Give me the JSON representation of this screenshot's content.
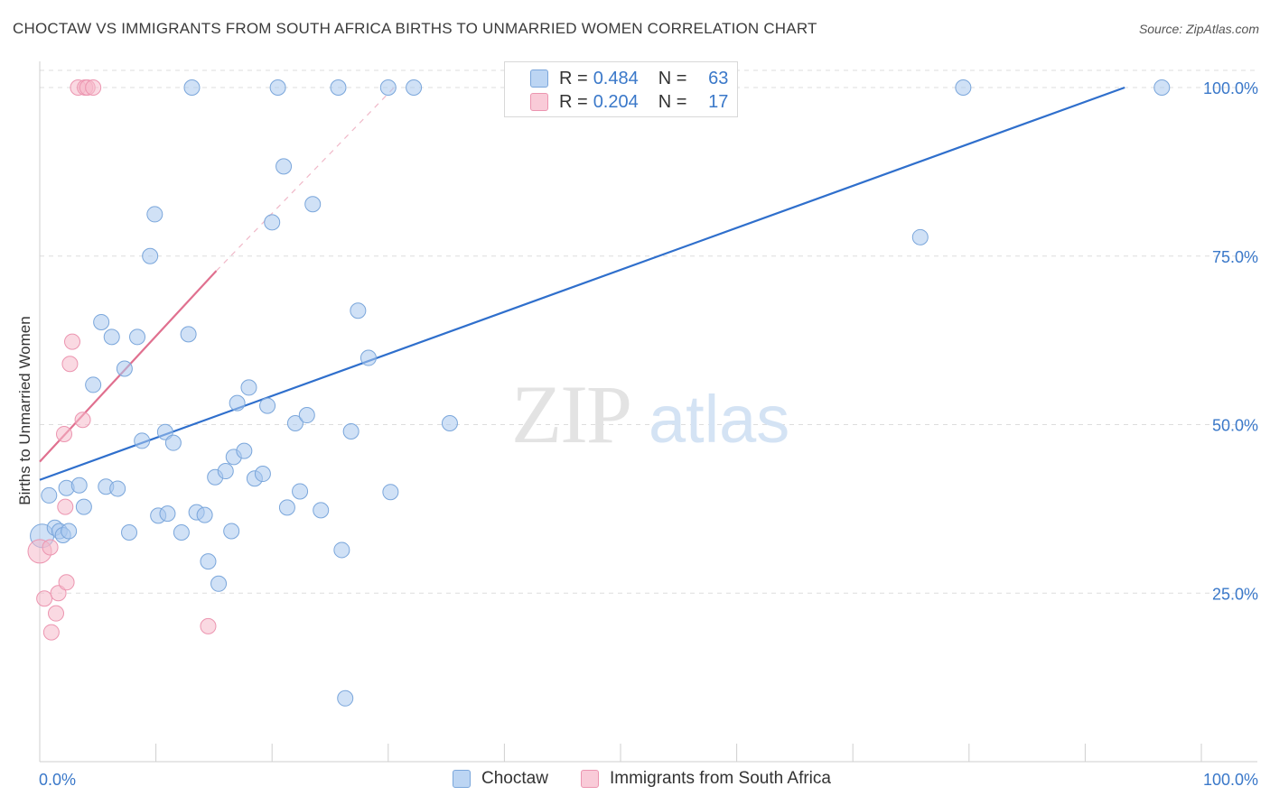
{
  "title": "CHOCTAW VS IMMIGRANTS FROM SOUTH AFRICA BIRTHS TO UNMARRIED WOMEN CORRELATION CHART",
  "source": "Source: ZipAtlas.com",
  "watermark": {
    "zip": "ZIP",
    "atlas": "atlas"
  },
  "legend_top": {
    "rows": [
      {
        "r_label": "R =",
        "r_value": "0.484",
        "n_label": "N =",
        "n_value": "63"
      },
      {
        "r_label": "R =",
        "r_value": "0.204",
        "n_label": "N =",
        "n_value": "17"
      }
    ]
  },
  "legend_bottom": {
    "items": [
      "Choctaw",
      "Immigrants from South Africa"
    ]
  },
  "colors": {
    "choctaw_fill": "#a9c8ef",
    "choctaw_stroke": "#7aa6db",
    "choctaw_line": "#2f6fcc",
    "sa_fill": "#f6b9cb",
    "sa_stroke": "#ec95b0",
    "sa_line": "#e0708f",
    "grid": "#dddddd",
    "tick_label": "#3a78c9"
  },
  "chart_data": {
    "type": "scatter",
    "title": "CHOCTAW VS IMMIGRANTS FROM SOUTH AFRICA BIRTHS TO UNMARRIED WOMEN CORRELATION CHART",
    "xlabel": "",
    "ylabel": "Births to Unmarried Women",
    "xlim": [
      0,
      100
    ],
    "ylim": [
      0,
      102.5
    ],
    "x_tick_labels": [
      "0.0%",
      "100.0%"
    ],
    "y_ticks": [
      25,
      50,
      75,
      100
    ],
    "y_tick_labels": [
      "25.0%",
      "50.0%",
      "75.0%",
      "100.0%"
    ],
    "grid": true,
    "series": [
      {
        "name": "Choctaw",
        "r": 0.484,
        "n": 63,
        "trend": {
          "x0": 0,
          "y0": 41.8,
          "x1": 93.4,
          "y1": 100
        },
        "points": [
          [
            0.2,
            33.5
          ],
          [
            0.8,
            39.5
          ],
          [
            1.3,
            34.7
          ],
          [
            1.7,
            34.2
          ],
          [
            2.0,
            33.6
          ],
          [
            2.3,
            40.6
          ],
          [
            2.5,
            34.2
          ],
          [
            3.4,
            41.0
          ],
          [
            3.8,
            37.8
          ],
          [
            4.6,
            55.9
          ],
          [
            5.3,
            65.2
          ],
          [
            5.7,
            40.8
          ],
          [
            6.2,
            63.0
          ],
          [
            6.7,
            40.5
          ],
          [
            7.3,
            58.3
          ],
          [
            7.7,
            34.0
          ],
          [
            8.4,
            63.0
          ],
          [
            8.8,
            47.6
          ],
          [
            9.5,
            75.0
          ],
          [
            9.9,
            81.2
          ],
          [
            10.2,
            36.5
          ],
          [
            10.8,
            48.9
          ],
          [
            11.0,
            36.8
          ],
          [
            11.5,
            47.3
          ],
          [
            12.2,
            34.0
          ],
          [
            12.8,
            63.4
          ],
          [
            13.1,
            100.0
          ],
          [
            13.5,
            37.0
          ],
          [
            14.2,
            36.6
          ],
          [
            14.5,
            29.7
          ],
          [
            15.1,
            42.2
          ],
          [
            15.4,
            26.4
          ],
          [
            16.0,
            43.1
          ],
          [
            16.5,
            34.2
          ],
          [
            16.7,
            45.2
          ],
          [
            17.0,
            53.2
          ],
          [
            17.6,
            46.1
          ],
          [
            18.0,
            55.5
          ],
          [
            18.5,
            42.0
          ],
          [
            19.2,
            42.7
          ],
          [
            19.6,
            52.8
          ],
          [
            20.0,
            80.0
          ],
          [
            20.5,
            100.0
          ],
          [
            21.0,
            88.3
          ],
          [
            21.3,
            37.7
          ],
          [
            22.0,
            50.2
          ],
          [
            22.4,
            40.1
          ],
          [
            23.0,
            51.4
          ],
          [
            23.5,
            82.7
          ],
          [
            24.2,
            37.3
          ],
          [
            25.7,
            100.0
          ],
          [
            26.0,
            31.4
          ],
          [
            26.3,
            9.4
          ],
          [
            26.8,
            49.0
          ],
          [
            27.4,
            66.9
          ],
          [
            28.3,
            59.9
          ],
          [
            30.0,
            100.0
          ],
          [
            30.2,
            40.0
          ],
          [
            32.2,
            100.0
          ],
          [
            35.3,
            50.2
          ],
          [
            75.8,
            77.8
          ],
          [
            79.5,
            100.0
          ],
          [
            96.6,
            100.0
          ]
        ]
      },
      {
        "name": "Immigrants from South Africa",
        "r": 0.204,
        "n": 17,
        "trend": {
          "x0": 0,
          "y0": 44.5,
          "x1": 15.2,
          "y1": 72.8,
          "dash_x1": 30.5,
          "dash_y1": 100
        },
        "points": [
          [
            0.0,
            31.2
          ],
          [
            0.4,
            24.2
          ],
          [
            0.9,
            31.8
          ],
          [
            1.0,
            19.2
          ],
          [
            1.4,
            22.0
          ],
          [
            1.6,
            25.0
          ],
          [
            2.1,
            48.6
          ],
          [
            2.2,
            37.8
          ],
          [
            2.3,
            26.6
          ],
          [
            2.6,
            59.0
          ],
          [
            2.8,
            62.3
          ],
          [
            3.3,
            100.0
          ],
          [
            3.7,
            50.7
          ],
          [
            3.9,
            100.0
          ],
          [
            4.1,
            100.0
          ],
          [
            4.6,
            100.0
          ],
          [
            14.5,
            20.1
          ]
        ]
      }
    ]
  }
}
